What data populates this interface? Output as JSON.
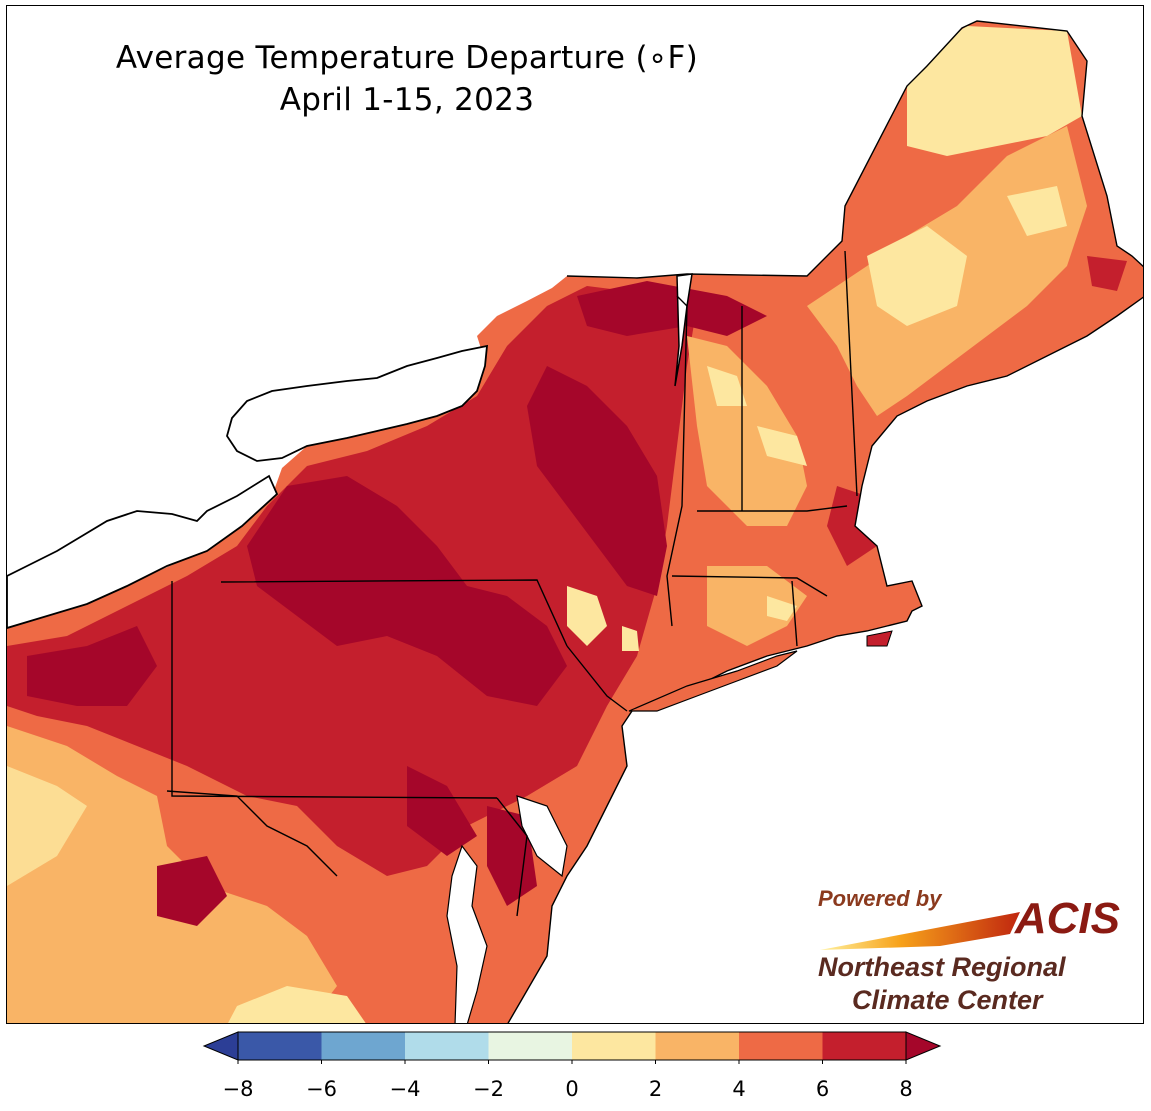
{
  "title": {
    "line1": "Average Temperature Departure (∘F)",
    "line2": "April 1-15, 2023"
  },
  "credit": {
    "powered_by": "Powered by",
    "acis": "ACIS",
    "org_line1": "Northeast Regional",
    "org_line2": "Climate Center"
  },
  "legend": {
    "ticks": [
      "−8",
      "−6",
      "−4",
      "−2",
      "0",
      "2",
      "4",
      "6",
      "8"
    ],
    "bins": [
      {
        "range": "-8 to -6",
        "color": "#3a58a8"
      },
      {
        "range": "-6 to -4",
        "color": "#6ea6d0"
      },
      {
        "range": "-4 to -2",
        "color": "#b0dcea"
      },
      {
        "range": "-2 to 0",
        "color": "#e8f5e2"
      },
      {
        "range": "0 to 2",
        "color": "#fde7a0"
      },
      {
        "range": "2 to 4",
        "color": "#f9b466"
      },
      {
        "range": "4 to 6",
        "color": "#ee6a45"
      },
      {
        "range": "6 to 8",
        "color": "#c41f2d"
      }
    ],
    "under_color": "#2c3e96",
    "over_color": "#a5062a"
  },
  "map_colors": {
    "land_base": "#ee6a45",
    "warmest": "#a5062a",
    "warm": "#c41f2d",
    "moderate": "#f9b466",
    "mild": "#fde7a0",
    "water": "#ffffff",
    "border": "#000000"
  }
}
